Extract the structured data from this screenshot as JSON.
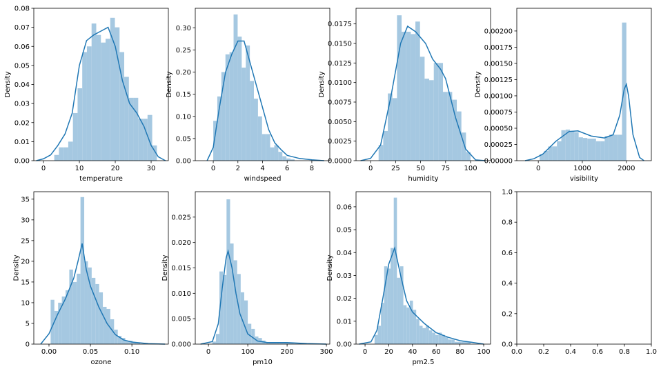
{
  "chart_data": [
    {
      "type": "histogram",
      "xlabel": "temperature",
      "ylabel": "Density",
      "color": "#a5c8e1",
      "bins": [
        3.0,
        4.3,
        5.6,
        6.9,
        8.2,
        9.5,
        10.8,
        12.1,
        13.4,
        14.7,
        16.0,
        17.3,
        18.6,
        19.9,
        21.2,
        22.5,
        23.8,
        25.1,
        26.4,
        27.7,
        29.0,
        30.3,
        31.6
      ],
      "values": [
        0.003,
        0.007,
        0.007,
        0.01,
        0.025,
        0.038,
        0.057,
        0.06,
        0.072,
        0.066,
        0.062,
        0.064,
        0.075,
        0.07,
        0.057,
        0.044,
        0.033,
        0.033,
        0.022,
        0.022,
        0.024,
        0.008
      ],
      "kde": {
        "color": "#1f77b4",
        "x": [
          -2,
          0,
          2,
          4,
          6,
          8,
          10,
          12,
          14,
          16,
          18,
          20,
          22,
          24,
          26,
          28,
          30,
          32,
          34
        ],
        "y": [
          0,
          0.001,
          0.003,
          0.008,
          0.014,
          0.025,
          0.05,
          0.063,
          0.066,
          0.068,
          0.07,
          0.06,
          0.042,
          0.03,
          0.025,
          0.018,
          0.008,
          0.002,
          0
        ]
      },
      "xlim": [
        -2.7,
        34.8
      ],
      "xticks": [
        0,
        10,
        20,
        30
      ],
      "ylim": [
        0,
        0.08
      ],
      "yticks": [
        {
          "value": 0,
          "label": "0.00"
        },
        {
          "value": 0.01,
          "label": "0.01"
        },
        {
          "value": 0.02,
          "label": "0.02"
        },
        {
          "value": 0.03,
          "label": "0.03"
        },
        {
          "value": 0.04,
          "label": "0.04"
        },
        {
          "value": 0.05,
          "label": "0.05"
        },
        {
          "value": 0.06,
          "label": "0.06"
        },
        {
          "value": 0.07,
          "label": "0.07"
        },
        {
          "value": 0.08,
          "label": "0.08"
        }
      ]
    },
    {
      "type": "histogram",
      "xlabel": "windspeed",
      "ylabel": "Density",
      "color": "#a5c8e1",
      "bins": [
        0,
        0.33,
        0.66,
        0.99,
        1.32,
        1.65,
        1.98,
        2.31,
        2.64,
        2.97,
        3.3,
        3.63,
        3.96,
        4.29,
        4.62,
        4.95,
        5.28,
        5.61,
        5.94,
        6.27,
        6.6
      ],
      "values": [
        0.09,
        0.145,
        0.2,
        0.24,
        0.245,
        0.33,
        0.28,
        0.21,
        0.26,
        0.18,
        0.14,
        0.1,
        0.06,
        0.06,
        0.03,
        0.035,
        0.02,
        0.01,
        0.005,
        0.003
      ],
      "kde": {
        "color": "#1f77b4",
        "x": [
          -0.5,
          0,
          0.5,
          1,
          1.5,
          2,
          2.5,
          3,
          3.5,
          4,
          4.5,
          5,
          5.5,
          6,
          7,
          8,
          9
        ],
        "y": [
          0,
          0.03,
          0.12,
          0.2,
          0.24,
          0.27,
          0.27,
          0.22,
          0.17,
          0.12,
          0.07,
          0.04,
          0.025,
          0.012,
          0.005,
          0.002,
          0
        ]
      },
      "xlim": [
        -1.46,
        9.46
      ],
      "xticks": [
        0,
        2,
        4,
        6,
        8
      ],
      "ylim": [
        0,
        0.344
      ],
      "yticks": [
        {
          "value": 0,
          "label": "0.00"
        },
        {
          "value": 0.05,
          "label": "0.05"
        },
        {
          "value": 0.1,
          "label": "0.10"
        },
        {
          "value": 0.15,
          "label": "0.15"
        },
        {
          "value": 0.2,
          "label": "0.20"
        },
        {
          "value": 0.25,
          "label": "0.25"
        },
        {
          "value": 0.3,
          "label": "0.30"
        }
      ]
    },
    {
      "type": "histogram",
      "xlabel": "humidity",
      "ylabel": "Density",
      "color": "#a5c8e1",
      "bins": [
        8,
        12.6,
        17.2,
        21.8,
        26.4,
        31,
        35.6,
        40.2,
        44.8,
        49.4,
        54,
        58.6,
        63.2,
        67.8,
        72.4,
        77,
        81.6,
        86.2,
        90.8,
        95.4,
        100
      ],
      "values": [
        0.002,
        0.0038,
        0.0086,
        0.008,
        0.0186,
        0.0165,
        0.0165,
        0.0162,
        0.0178,
        0.0133,
        0.0105,
        0.0103,
        0.0125,
        0.0125,
        0.0088,
        0.0088,
        0.0078,
        0.0063,
        0.0036,
        0.0011
      ],
      "kde": {
        "color": "#1f77b4",
        "x": [
          -10,
          0,
          10,
          20,
          30,
          37,
          45,
          55,
          62,
          70,
          75,
          85,
          95,
          105,
          115
        ],
        "y": [
          0,
          0.0003,
          0.002,
          0.008,
          0.015,
          0.0172,
          0.0165,
          0.015,
          0.013,
          0.0117,
          0.0105,
          0.0055,
          0.0015,
          0.0001,
          0
        ]
      },
      "xlim": [
        -14.6,
        120
      ],
      "xticks": [
        0,
        25,
        50,
        75,
        100
      ],
      "ylim": [
        0,
        0.0195
      ],
      "yticks": [
        {
          "value": 0,
          "label": "0.0000"
        },
        {
          "value": 0.0025,
          "label": "0.0025"
        },
        {
          "value": 0.005,
          "label": "0.0050"
        },
        {
          "value": 0.0075,
          "label": "0.0075"
        },
        {
          "value": 0.01,
          "label": "0.0100"
        },
        {
          "value": 0.0125,
          "label": "0.0125"
        },
        {
          "value": 0.015,
          "label": "0.0150"
        },
        {
          "value": 0.0175,
          "label": "0.0175"
        }
      ]
    },
    {
      "type": "histogram",
      "xlabel": "visibility",
      "ylabel": "Density",
      "color": "#a5c8e1",
      "bins": [
        30,
        128.5,
        227,
        325.5,
        424,
        522.5,
        621,
        719.5,
        818,
        916.5,
        1015,
        1113.5,
        1212,
        1310.5,
        1409,
        1507.5,
        1606,
        1704.5,
        1803,
        1901.5,
        2000
      ],
      "values": [
        0.0001,
        0.00015,
        0.00022,
        0.00022,
        0.0003,
        0.00047,
        0.00048,
        0.00046,
        0.00044,
        0.00036,
        0.00035,
        0.00034,
        0.00034,
        0.0003,
        0.0003,
        0.00038,
        0.0004,
        0.0004,
        0.0004,
        0.00213
      ],
      "kde": {
        "color": "#1f77b4",
        "x": [
          -300,
          -100,
          100,
          400,
          700,
          900,
          1200,
          1500,
          1700,
          1850,
          1950,
          2000,
          2050,
          2150,
          2300,
          2400
        ],
        "y": [
          0,
          3e-05,
          0.0001,
          0.0003,
          0.00045,
          0.00046,
          0.00038,
          0.00035,
          0.0004,
          0.0007,
          0.0011,
          0.00118,
          0.001,
          0.0004,
          5e-05,
          0
        ]
      },
      "xlim": [
        -488,
        2567
      ],
      "xticks": [
        0,
        1000,
        2000
      ],
      "ylim": [
        0,
        0.00235
      ],
      "yticks": [
        {
          "value": 0,
          "label": "0.00000"
        },
        {
          "value": 0.00025,
          "label": "0.00025"
        },
        {
          "value": 0.0005,
          "label": "0.00050"
        },
        {
          "value": 0.00075,
          "label": "0.00075"
        },
        {
          "value": 0.001,
          "label": "0.00100"
        },
        {
          "value": 0.00125,
          "label": "0.00125"
        },
        {
          "value": 0.0015,
          "label": "0.00150"
        },
        {
          "value": 0.00175,
          "label": "0.00175"
        },
        {
          "value": 0.002,
          "label": "0.00200"
        }
      ]
    },
    {
      "type": "histogram",
      "xlabel": "ozone",
      "ylabel": "Density",
      "color": "#a5c8e1",
      "bins": [
        0.002,
        0.0065,
        0.011,
        0.0155,
        0.02,
        0.0245,
        0.029,
        0.0335,
        0.038,
        0.0425,
        0.047,
        0.0515,
        0.056,
        0.0605,
        0.065,
        0.0695,
        0.074,
        0.0785,
        0.083,
        0.0875,
        0.092,
        0.0965,
        0.101,
        0.1055,
        0.11
      ],
      "values": [
        10.7,
        8,
        10,
        11.5,
        13,
        18,
        15,
        17,
        35.5,
        20,
        18.5,
        16,
        14.5,
        12.5,
        9,
        8.5,
        6,
        3.5,
        2,
        1.5,
        0.8,
        0.8,
        0.3,
        0.2
      ],
      "kde": {
        "color": "#1f77b4",
        "x": [
          -0.01,
          0,
          0.01,
          0.02,
          0.03,
          0.035,
          0.04,
          0.045,
          0.05,
          0.06,
          0.07,
          0.08,
          0.09,
          0.1,
          0.12,
          0.14
        ],
        "y": [
          0,
          2.5,
          7,
          11,
          16,
          20,
          24.3,
          18,
          14,
          9,
          5,
          2.3,
          1,
          0.5,
          0.1,
          0
        ]
      },
      "xlim": [
        -0.0183,
        0.144
      ],
      "xticks": [
        {
          "value": 0,
          "label": "0.00"
        },
        {
          "value": 0.05,
          "label": "0.05"
        },
        {
          "value": 0.1,
          "label": "0.10"
        }
      ],
      "ylim": [
        0,
        36.8
      ],
      "yticks": [
        0,
        5,
        10,
        15,
        20,
        25,
        30,
        35
      ]
    },
    {
      "type": "histogram",
      "xlabel": "pm10",
      "ylabel": "Density",
      "color": "#a5c8e1",
      "bins": [
        10,
        19,
        28,
        37,
        46,
        55,
        64,
        73,
        82,
        91,
        100,
        109,
        118,
        127,
        136,
        145,
        154,
        163,
        172,
        181,
        190,
        199,
        208,
        217,
        226,
        235,
        244,
        253,
        262,
        271,
        280
      ],
      "values": [
        0.0005,
        0.002,
        0.0143,
        0.0136,
        0.0285,
        0.0198,
        0.0165,
        0.0138,
        0.0102,
        0.0086,
        0.004,
        0.003,
        0.0015,
        0.0012,
        0.0007,
        0.0003,
        0.0003,
        0.0002,
        0.0004,
        0.0002,
        0.0003,
        0.0002,
        0.0003,
        0.0001,
        0.0001,
        0.0001,
        0.0001,
        0.0001,
        0.0001,
        0.0001
      ],
      "kde": {
        "color": "#1f77b4",
        "x": [
          -20,
          10,
          25,
          35,
          45,
          50,
          60,
          70,
          80,
          100,
          125,
          150,
          200,
          250,
          300
        ],
        "y": [
          0,
          0.0005,
          0.004,
          0.011,
          0.017,
          0.0183,
          0.015,
          0.01,
          0.006,
          0.002,
          0.0006,
          0.0003,
          0.0003,
          0.0001,
          0
        ]
      },
      "xlim": [
        -33.5,
        308.6
      ],
      "xticks": [
        0,
        100,
        200,
        300
      ],
      "ylim": [
        0,
        0.03
      ],
      "yticks": [
        {
          "value": 0,
          "label": "0.000"
        },
        {
          "value": 0.005,
          "label": "0.005"
        },
        {
          "value": 0.01,
          "label": "0.010"
        },
        {
          "value": 0.015,
          "label": "0.015"
        },
        {
          "value": 0.02,
          "label": "0.020"
        },
        {
          "value": 0.025,
          "label": "0.025"
        }
      ]
    },
    {
      "type": "histogram",
      "xlabel": "pm2.5",
      "ylabel": "Density",
      "color": "#a5c8e1",
      "bins": [
        8,
        10.7,
        13.4,
        16.1,
        18.8,
        21.5,
        24.2,
        26.9,
        29.6,
        32.3,
        35,
        37.7,
        40.4,
        43.1,
        45.8,
        48.5,
        51.2,
        53.9,
        56.6,
        59.3,
        62,
        64.7,
        67.4,
        70.1,
        72.8,
        75.5,
        78.2,
        80.9,
        83.6,
        86.3,
        89
      ],
      "values": [
        0.004,
        0.008,
        0.018,
        0.034,
        0.033,
        0.042,
        0.064,
        0.029,
        0.034,
        0.017,
        0.016,
        0.019,
        0.015,
        0.011,
        0.008,
        0.007,
        0.008,
        0.006,
        0.005,
        0.004,
        0.005,
        0.004,
        0.003,
        0.002,
        0.002,
        0.001,
        0.001,
        0.001,
        0.001,
        0.001
      ],
      "kde": {
        "color": "#1f77b4",
        "x": [
          -5,
          5,
          10,
          15,
          20,
          25,
          30,
          35,
          40,
          50,
          60,
          70,
          80,
          90,
          100
        ],
        "y": [
          0,
          0.001,
          0.006,
          0.02,
          0.035,
          0.042,
          0.03,
          0.019,
          0.014,
          0.009,
          0.005,
          0.003,
          0.0015,
          0.0008,
          0
        ]
      },
      "xlim": [
        -7.6,
        105.8
      ],
      "xticks": [
        0,
        20,
        40,
        60,
        80,
        100
      ],
      "ylim": [
        0,
        0.0666
      ],
      "yticks": [
        {
          "value": 0,
          "label": "0.00"
        },
        {
          "value": 0.01,
          "label": "0.01"
        },
        {
          "value": 0.02,
          "label": "0.02"
        },
        {
          "value": 0.03,
          "label": "0.03"
        },
        {
          "value": 0.04,
          "label": "0.04"
        },
        {
          "value": 0.05,
          "label": "0.05"
        },
        {
          "value": 0.06,
          "label": "0.06"
        }
      ]
    },
    {
      "type": "empty",
      "xlim": [
        0,
        1
      ],
      "ylim": [
        0,
        1
      ],
      "xticks": [
        {
          "value": 0,
          "label": "0.0"
        },
        {
          "value": 0.2,
          "label": "0.2"
        },
        {
          "value": 0.4,
          "label": "0.4"
        },
        {
          "value": 0.6,
          "label": "0.6"
        },
        {
          "value": 0.8,
          "label": "0.8"
        },
        {
          "value": 1,
          "label": "1.0"
        }
      ],
      "yticks": [
        {
          "value": 0,
          "label": "0.0"
        },
        {
          "value": 0.2,
          "label": "0.2"
        },
        {
          "value": 0.4,
          "label": "0.4"
        },
        {
          "value": 0.6,
          "label": "0.6"
        },
        {
          "value": 0.8,
          "label": "0.8"
        },
        {
          "value": 1,
          "label": "1.0"
        }
      ]
    }
  ]
}
